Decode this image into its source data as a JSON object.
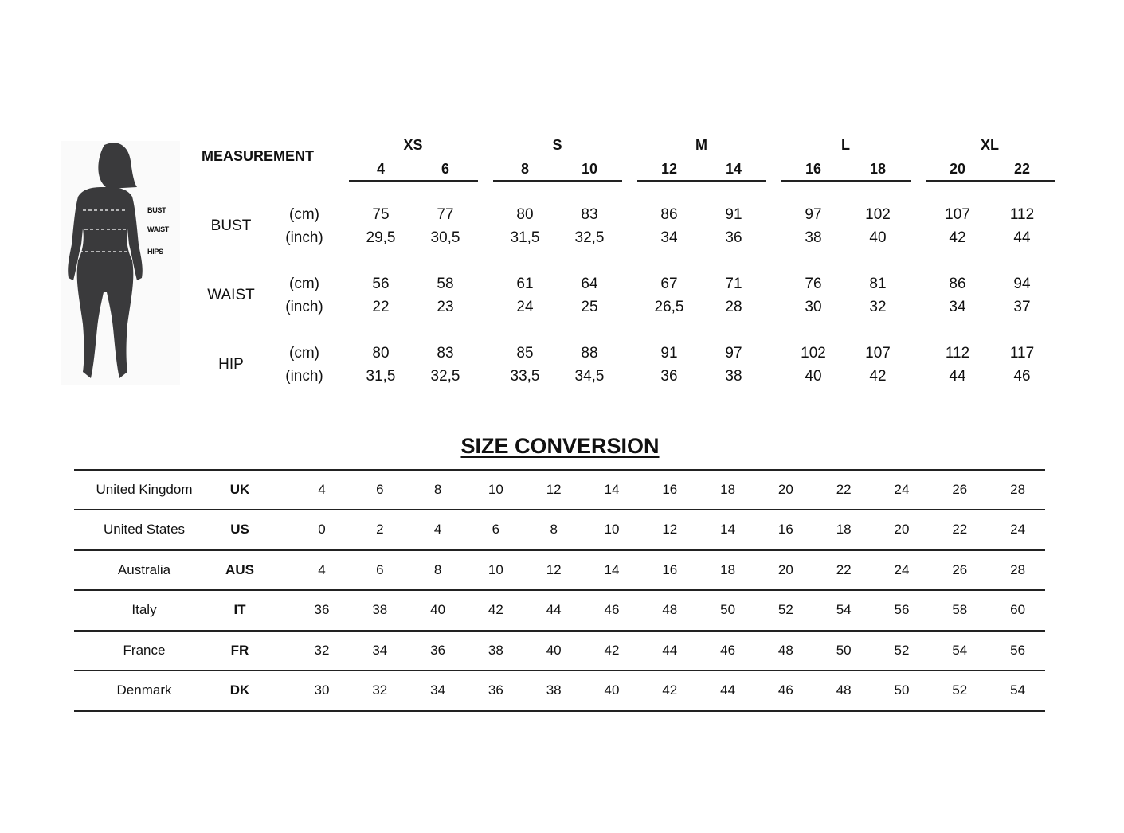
{
  "figure": {
    "labels": [
      "BUST",
      "WAIST",
      "HIPS"
    ]
  },
  "measurement": {
    "header": "MEASUREMENT",
    "groups": [
      {
        "name": "XS",
        "sizes": [
          "4",
          "6"
        ]
      },
      {
        "name": "S",
        "sizes": [
          "8",
          "10"
        ]
      },
      {
        "name": "M",
        "sizes": [
          "12",
          "14"
        ]
      },
      {
        "name": "L",
        "sizes": [
          "16",
          "18"
        ]
      },
      {
        "name": "XL",
        "sizes": [
          "20",
          "22"
        ]
      }
    ],
    "rows": [
      {
        "label": "BUST",
        "units": [
          "(cm)",
          "(inch)"
        ],
        "cm": [
          "75",
          "77",
          "80",
          "83",
          "86",
          "91",
          "97",
          "102",
          "107",
          "112"
        ],
        "inch": [
          "29,5",
          "30,5",
          "31,5",
          "32,5",
          "34",
          "36",
          "38",
          "40",
          "42",
          "44"
        ]
      },
      {
        "label": "WAIST",
        "units": [
          "(cm)",
          "(inch)"
        ],
        "cm": [
          "56",
          "58",
          "61",
          "64",
          "67",
          "71",
          "76",
          "81",
          "86",
          "94"
        ],
        "inch": [
          "22",
          "23",
          "24",
          "25",
          "26,5",
          "28",
          "30",
          "32",
          "34",
          "37"
        ]
      },
      {
        "label": "HIP",
        "units": [
          "(cm)",
          "(inch)"
        ],
        "cm": [
          "80",
          "83",
          "85",
          "88",
          "91",
          "97",
          "102",
          "107",
          "112",
          "117"
        ],
        "inch": [
          "31,5",
          "32,5",
          "33,5",
          "34,5",
          "36",
          "38",
          "40",
          "42",
          "44",
          "46"
        ]
      }
    ]
  },
  "conversion": {
    "title": "SIZE CONVERSION",
    "rows": [
      {
        "country": "United Kingdom",
        "code": "UK",
        "values": [
          "4",
          "6",
          "8",
          "10",
          "12",
          "14",
          "16",
          "18",
          "20",
          "22",
          "24",
          "26",
          "28"
        ]
      },
      {
        "country": "United States",
        "code": "US",
        "values": [
          "0",
          "2",
          "4",
          "6",
          "8",
          "10",
          "12",
          "14",
          "16",
          "18",
          "20",
          "22",
          "24"
        ]
      },
      {
        "country": "Australia",
        "code": "AUS",
        "values": [
          "4",
          "6",
          "8",
          "10",
          "12",
          "14",
          "16",
          "18",
          "20",
          "22",
          "24",
          "26",
          "28"
        ]
      },
      {
        "country": "Italy",
        "code": "IT",
        "values": [
          "36",
          "38",
          "40",
          "42",
          "44",
          "46",
          "48",
          "50",
          "52",
          "54",
          "56",
          "58",
          "60"
        ]
      },
      {
        "country": "France",
        "code": "FR",
        "values": [
          "32",
          "34",
          "36",
          "38",
          "40",
          "42",
          "44",
          "46",
          "48",
          "50",
          "52",
          "54",
          "56"
        ]
      },
      {
        "country": "Denmark",
        "code": "DK",
        "values": [
          "30",
          "32",
          "34",
          "36",
          "38",
          "40",
          "42",
          "44",
          "46",
          "48",
          "50",
          "52",
          "54"
        ]
      }
    ]
  }
}
